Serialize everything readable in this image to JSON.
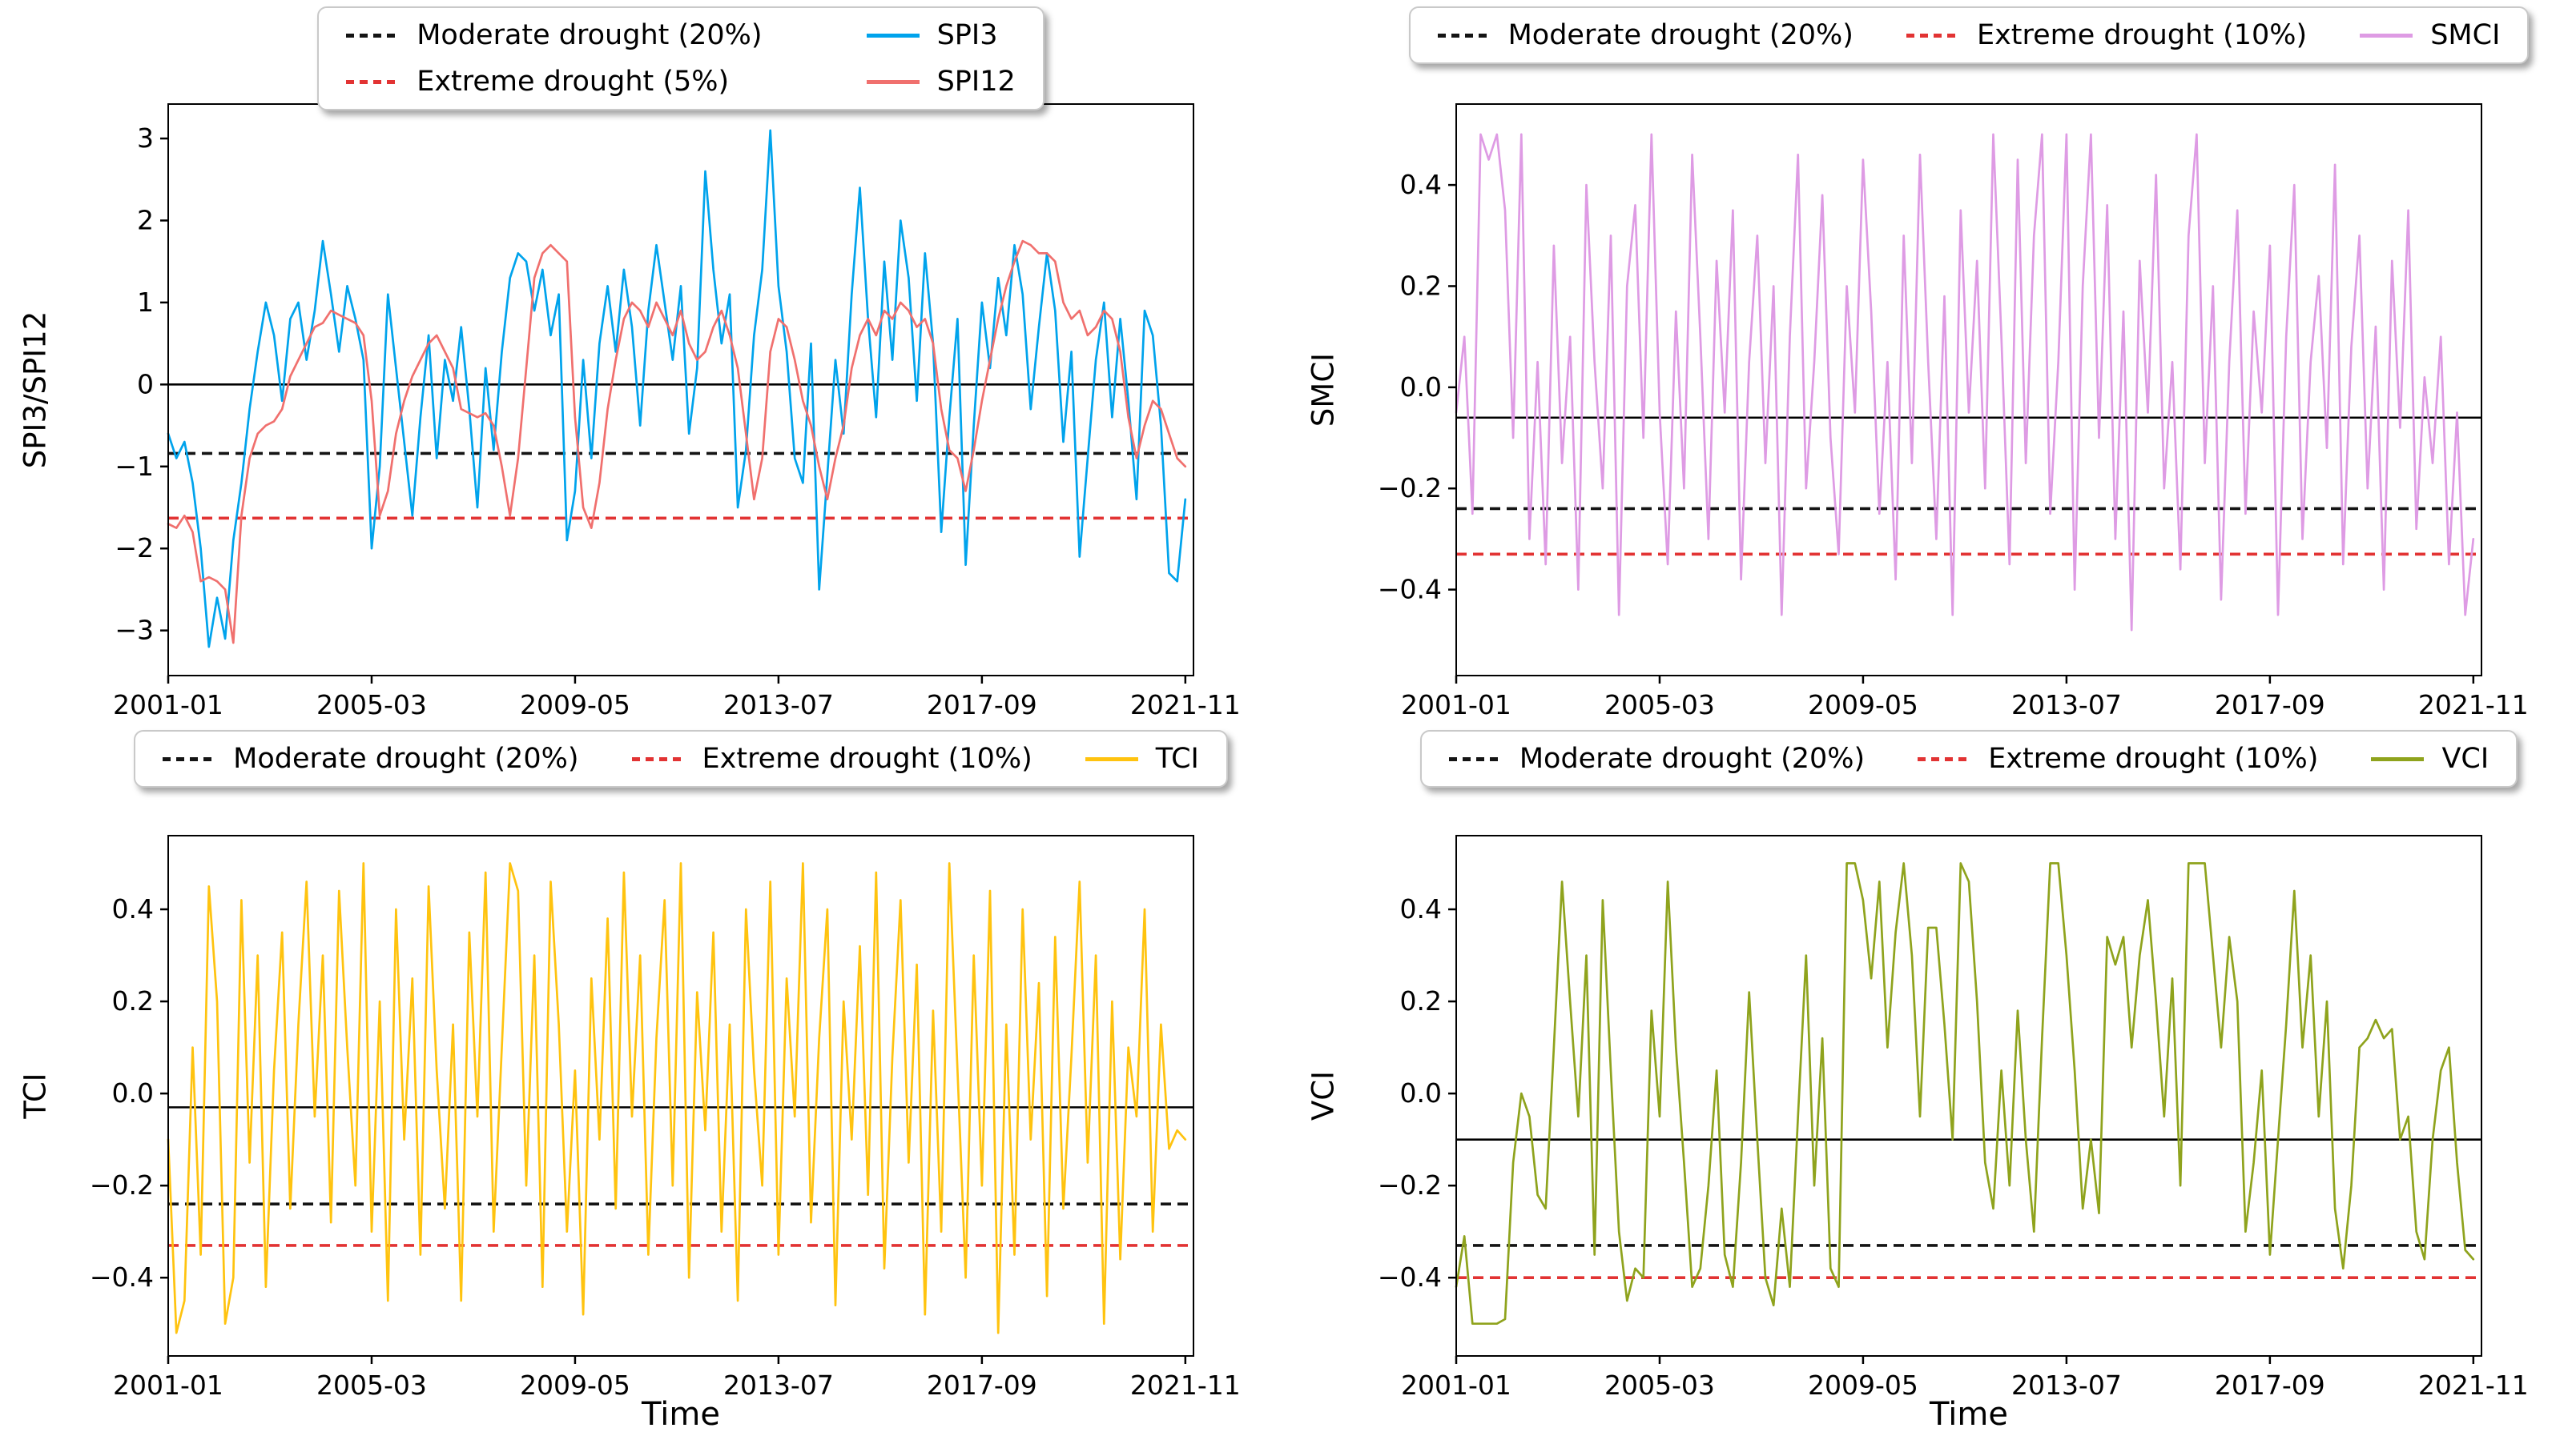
{
  "figure": {
    "background": "#ffffff",
    "time_axis_label": "Time"
  },
  "chart_data": [
    {
      "type": "line",
      "ylabel": "SPI3/SPI12",
      "xlabel": "",
      "x_tick_labels": [
        "2001-01",
        "2005-03",
        "2009-05",
        "2013-07",
        "2017-09",
        "2021-11"
      ],
      "x_tick_months": [
        0,
        50,
        100,
        150,
        200,
        250
      ],
      "x_total_months": 252,
      "x_step_months": 2,
      "ylim": [
        -3.55,
        3.42
      ],
      "yticks": [
        {
          "v": 3,
          "label": "3"
        },
        {
          "v": 2,
          "label": "2"
        },
        {
          "v": 1,
          "label": "1"
        },
        {
          "v": 0,
          "label": "0"
        },
        {
          "v": -1,
          "label": "−1"
        },
        {
          "v": -2,
          "label": "−2"
        },
        {
          "v": -3,
          "label": "−3"
        }
      ],
      "reference_lines": [
        {
          "name": "zero-line",
          "style": "solid",
          "color": "#000000",
          "value": 0
        },
        {
          "name": "Moderate drought (20%)",
          "style": "dashed",
          "color": "#141414",
          "value": -0.84
        },
        {
          "name": "Extreme drought (5%)",
          "style": "dashed",
          "color": "#e23333",
          "value": -1.63
        }
      ],
      "legend": [
        {
          "label": "Moderate drought (20%)",
          "style": "dashed",
          "color": "#141414"
        },
        {
          "label": "SPI3",
          "style": "solid",
          "color": "#00a3ec"
        },
        {
          "label": "Extreme drought (5%)",
          "style": "dashed",
          "color": "#e23333"
        },
        {
          "label": "SPI12",
          "style": "solid",
          "color": "#f0706e"
        }
      ],
      "series": [
        {
          "name": "SPI3",
          "color": "#00a3ec",
          "values": [
            -0.6,
            -0.9,
            -0.7,
            -1.2,
            -2.0,
            -3.2,
            -2.6,
            -3.1,
            -1.9,
            -1.2,
            -0.3,
            0.4,
            1.0,
            0.6,
            -0.2,
            0.8,
            1.0,
            0.3,
            0.9,
            1.75,
            1.1,
            0.4,
            1.2,
            0.8,
            0.3,
            -2.0,
            -1.0,
            1.1,
            0.2,
            -0.7,
            -1.6,
            -0.4,
            0.6,
            -0.9,
            0.3,
            -0.2,
            0.7,
            -0.3,
            -1.5,
            0.2,
            -0.8,
            0.4,
            1.3,
            1.6,
            1.5,
            0.9,
            1.4,
            0.6,
            1.1,
            -1.9,
            -1.3,
            0.3,
            -0.9,
            0.5,
            1.2,
            0.4,
            1.4,
            0.7,
            -0.5,
            0.9,
            1.7,
            1.0,
            0.3,
            1.2,
            -0.6,
            0.2,
            2.6,
            1.4,
            0.5,
            1.1,
            -1.5,
            -0.8,
            0.6,
            1.4,
            3.1,
            1.2,
            0.4,
            -0.9,
            -1.2,
            0.5,
            -2.5,
            -1.1,
            0.3,
            -0.6,
            1.1,
            2.4,
            0.8,
            -0.4,
            1.5,
            0.3,
            2.0,
            1.3,
            -0.2,
            1.6,
            0.5,
            -1.8,
            -0.4,
            0.8,
            -2.2,
            -0.5,
            1.0,
            0.2,
            1.3,
            0.6,
            1.7,
            1.1,
            -0.3,
            0.7,
            1.6,
            0.9,
            -0.7,
            0.4,
            -2.1,
            -0.9,
            0.3,
            1.0,
            -0.4,
            0.8,
            -0.2,
            -1.4,
            0.9,
            0.6,
            -0.5,
            -2.3,
            -2.4,
            -1.4
          ]
        },
        {
          "name": "SPI12",
          "color": "#f0706e",
          "values": [
            -1.7,
            -1.75,
            -1.6,
            -1.8,
            -2.4,
            -2.35,
            -2.4,
            -2.5,
            -3.15,
            -1.6,
            -0.9,
            -0.6,
            -0.5,
            -0.45,
            -0.3,
            0.1,
            0.3,
            0.5,
            0.7,
            0.75,
            0.9,
            0.85,
            0.8,
            0.75,
            0.6,
            -0.2,
            -1.6,
            -1.3,
            -0.6,
            -0.2,
            0.1,
            0.3,
            0.5,
            0.6,
            0.4,
            0.2,
            -0.3,
            -0.35,
            -0.4,
            -0.35,
            -0.5,
            -1.0,
            -1.6,
            -0.9,
            0.2,
            1.3,
            1.6,
            1.7,
            1.6,
            1.5,
            -0.4,
            -1.5,
            -1.75,
            -1.2,
            -0.3,
            0.3,
            0.8,
            1.0,
            0.9,
            0.7,
            1.0,
            0.8,
            0.6,
            0.9,
            0.5,
            0.3,
            0.4,
            0.7,
            0.9,
            0.6,
            0.2,
            -0.6,
            -1.4,
            -0.9,
            0.4,
            0.8,
            0.7,
            0.3,
            -0.2,
            -0.5,
            -1.0,
            -1.4,
            -0.9,
            -0.5,
            0.2,
            0.6,
            0.8,
            0.6,
            0.9,
            0.8,
            1.0,
            0.9,
            0.7,
            0.8,
            0.5,
            -0.3,
            -0.8,
            -0.9,
            -1.3,
            -0.8,
            -0.2,
            0.3,
            0.8,
            1.2,
            1.5,
            1.75,
            1.7,
            1.6,
            1.6,
            1.5,
            1.0,
            0.8,
            0.9,
            0.6,
            0.7,
            0.9,
            0.8,
            0.4,
            -0.4,
            -0.9,
            -0.5,
            -0.2,
            -0.3,
            -0.6,
            -0.9,
            -1.0
          ]
        }
      ]
    },
    {
      "type": "line",
      "ylabel": "SMCI",
      "xlabel": "",
      "x_tick_labels": [
        "2001-01",
        "2005-03",
        "2009-05",
        "2013-07",
        "2017-09",
        "2021-11"
      ],
      "x_tick_months": [
        0,
        50,
        100,
        150,
        200,
        250
      ],
      "x_total_months": 252,
      "x_step_months": 2,
      "ylim": [
        -0.57,
        0.56
      ],
      "yticks": [
        {
          "v": 0.4,
          "label": "0.4"
        },
        {
          "v": 0.2,
          "label": "0.2"
        },
        {
          "v": 0.0,
          "label": "0.0"
        },
        {
          "v": -0.2,
          "label": "−0.2"
        },
        {
          "v": -0.4,
          "label": "−0.4"
        }
      ],
      "reference_lines": [
        {
          "name": "mean-line",
          "style": "solid",
          "color": "#000000",
          "value": -0.06
        },
        {
          "name": "Moderate drought (20%)",
          "style": "dashed",
          "color": "#141414",
          "value": -0.24
        },
        {
          "name": "Extreme drought (10%)",
          "style": "dashed",
          "color": "#e23333",
          "value": -0.33
        }
      ],
      "legend": [
        {
          "label": "Moderate drought (20%)",
          "style": "dashed",
          "color": "#141414"
        },
        {
          "label": "Extreme drought (10%)",
          "style": "dashed",
          "color": "#e23333"
        },
        {
          "label": "SMCI",
          "style": "solid",
          "color": "#de9be4"
        }
      ],
      "series": [
        {
          "name": "SMCI",
          "color": "#de9be4",
          "values": [
            -0.05,
            0.1,
            -0.25,
            0.5,
            0.45,
            0.5,
            0.35,
            -0.1,
            0.5,
            -0.3,
            0.05,
            -0.35,
            0.28,
            -0.15,
            0.1,
            -0.4,
            0.4,
            0.05,
            -0.2,
            0.3,
            -0.45,
            0.2,
            0.36,
            -0.1,
            0.5,
            -0.05,
            -0.35,
            0.15,
            -0.2,
            0.46,
            0.1,
            -0.3,
            0.25,
            -0.05,
            0.35,
            -0.38,
            0.05,
            0.3,
            -0.15,
            0.2,
            -0.45,
            0.1,
            0.46,
            -0.2,
            0.05,
            0.38,
            -0.1,
            -0.33,
            0.2,
            -0.05,
            0.45,
            0.15,
            -0.25,
            0.05,
            -0.38,
            0.3,
            -0.15,
            0.46,
            0.05,
            -0.3,
            0.18,
            -0.45,
            0.35,
            -0.05,
            0.25,
            -0.2,
            0.5,
            0.1,
            -0.35,
            0.45,
            -0.15,
            0.3,
            0.5,
            -0.25,
            0.05,
            0.5,
            -0.4,
            0.2,
            0.5,
            -0.1,
            0.36,
            -0.3,
            0.15,
            -0.48,
            0.25,
            -0.05,
            0.42,
            -0.2,
            0.05,
            -0.36,
            0.3,
            0.5,
            -0.15,
            0.2,
            -0.42,
            0.05,
            0.35,
            -0.25,
            0.15,
            -0.05,
            0.28,
            -0.45,
            0.1,
            0.4,
            -0.3,
            0.05,
            0.22,
            -0.12,
            0.44,
            -0.35,
            0.08,
            0.3,
            -0.2,
            0.12,
            -0.4,
            0.25,
            -0.08,
            0.35,
            -0.28,
            0.02,
            -0.15,
            0.1,
            -0.35,
            -0.05,
            -0.45,
            -0.3
          ]
        }
      ]
    },
    {
      "type": "line",
      "ylabel": "TCI",
      "xlabel": "Time",
      "x_tick_labels": [
        "2001-01",
        "2005-03",
        "2009-05",
        "2013-07",
        "2017-09",
        "2021-11"
      ],
      "x_tick_months": [
        0,
        50,
        100,
        150,
        200,
        250
      ],
      "x_total_months": 252,
      "x_step_months": 2,
      "ylim": [
        -0.57,
        0.56
      ],
      "yticks": [
        {
          "v": 0.4,
          "label": "0.4"
        },
        {
          "v": 0.2,
          "label": "0.2"
        },
        {
          "v": 0.0,
          "label": "0.0"
        },
        {
          "v": -0.2,
          "label": "−0.2"
        },
        {
          "v": -0.4,
          "label": "−0.4"
        }
      ],
      "reference_lines": [
        {
          "name": "mean-line",
          "style": "solid",
          "color": "#000000",
          "value": -0.03
        },
        {
          "name": "Moderate drought (20%)",
          "style": "dashed",
          "color": "#141414",
          "value": -0.24
        },
        {
          "name": "Extreme drought (10%)",
          "style": "dashed",
          "color": "#e23333",
          "value": -0.33
        }
      ],
      "legend": [
        {
          "label": "Moderate drought (20%)",
          "style": "dashed",
          "color": "#141414"
        },
        {
          "label": "Extreme drought (10%)",
          "style": "dashed",
          "color": "#e23333"
        },
        {
          "label": "TCI",
          "style": "solid",
          "color": "#ffc30f"
        }
      ],
      "series": [
        {
          "name": "TCI",
          "color": "#ffc30f",
          "values": [
            -0.1,
            -0.52,
            -0.45,
            0.1,
            -0.35,
            0.45,
            0.2,
            -0.5,
            -0.4,
            0.42,
            -0.15,
            0.3,
            -0.42,
            0.05,
            0.35,
            -0.25,
            0.15,
            0.46,
            -0.05,
            0.3,
            -0.28,
            0.44,
            0.1,
            -0.2,
            0.5,
            -0.3,
            0.2,
            -0.45,
            0.4,
            -0.1,
            0.25,
            -0.35,
            0.45,
            0.05,
            -0.25,
            0.15,
            -0.45,
            0.35,
            -0.05,
            0.48,
            -0.3,
            0.1,
            0.5,
            0.44,
            -0.2,
            0.3,
            -0.42,
            0.46,
            0.15,
            -0.3,
            0.05,
            -0.48,
            0.25,
            -0.1,
            0.38,
            -0.25,
            0.48,
            -0.05,
            0.3,
            -0.35,
            0.12,
            0.42,
            -0.2,
            0.5,
            -0.4,
            0.22,
            -0.08,
            0.35,
            -0.3,
            0.15,
            -0.45,
            0.4,
            0.05,
            -0.2,
            0.46,
            -0.35,
            0.25,
            -0.05,
            0.5,
            -0.28,
            0.12,
            0.4,
            -0.46,
            0.2,
            -0.1,
            0.32,
            -0.22,
            0.48,
            -0.38,
            0.08,
            0.42,
            -0.15,
            0.28,
            -0.48,
            0.18,
            -0.3,
            0.5,
            0.05,
            -0.4,
            0.3,
            -0.2,
            0.44,
            -0.52,
            0.15,
            -0.35,
            0.4,
            -0.1,
            0.24,
            -0.44,
            0.34,
            -0.25,
            0.08,
            0.46,
            -0.15,
            0.3,
            -0.5,
            0.2,
            -0.36,
            0.1,
            -0.05,
            0.4,
            -0.3,
            0.15,
            -0.12,
            -0.08,
            -0.1
          ]
        }
      ]
    },
    {
      "type": "line",
      "ylabel": "VCI",
      "xlabel": "Time",
      "x_tick_labels": [
        "2001-01",
        "2005-03",
        "2009-05",
        "2013-07",
        "2017-09",
        "2021-11"
      ],
      "x_tick_months": [
        0,
        50,
        100,
        150,
        200,
        250
      ],
      "x_total_months": 252,
      "x_step_months": 2,
      "ylim": [
        -0.57,
        0.56
      ],
      "yticks": [
        {
          "v": 0.4,
          "label": "0.4"
        },
        {
          "v": 0.2,
          "label": "0.2"
        },
        {
          "v": 0.0,
          "label": "0.0"
        },
        {
          "v": -0.2,
          "label": "−0.2"
        },
        {
          "v": -0.4,
          "label": "−0.4"
        }
      ],
      "reference_lines": [
        {
          "name": "mean-line",
          "style": "solid",
          "color": "#000000",
          "value": -0.1
        },
        {
          "name": "Moderate drought (20%)",
          "style": "dashed",
          "color": "#141414",
          "value": -0.33
        },
        {
          "name": "Extreme drought (10%)",
          "style": "dashed",
          "color": "#e23333",
          "value": -0.4
        }
      ],
      "legend": [
        {
          "label": "Moderate drought (20%)",
          "style": "dashed",
          "color": "#141414"
        },
        {
          "label": "Extreme drought (10%)",
          "style": "dashed",
          "color": "#e23333"
        },
        {
          "label": "VCI",
          "style": "solid",
          "color": "#8fa31d"
        }
      ],
      "series": [
        {
          "name": "VCI",
          "color": "#8fa31d",
          "values": [
            -0.42,
            -0.31,
            -0.5,
            -0.5,
            -0.5,
            -0.5,
            -0.49,
            -0.15,
            0.0,
            -0.05,
            -0.22,
            -0.25,
            0.1,
            0.46,
            0.2,
            -0.05,
            0.3,
            -0.35,
            0.42,
            0.05,
            -0.3,
            -0.45,
            -0.38,
            -0.4,
            0.18,
            -0.05,
            0.46,
            0.1,
            -0.15,
            -0.42,
            -0.38,
            -0.2,
            0.05,
            -0.35,
            -0.42,
            -0.15,
            0.22,
            -0.1,
            -0.4,
            -0.46,
            -0.25,
            -0.42,
            -0.05,
            0.3,
            -0.2,
            0.12,
            -0.38,
            -0.42,
            0.5,
            0.5,
            0.42,
            0.25,
            0.46,
            0.1,
            0.35,
            0.5,
            0.3,
            -0.05,
            0.36,
            0.36,
            0.15,
            -0.1,
            0.5,
            0.46,
            0.2,
            -0.15,
            -0.25,
            0.05,
            -0.2,
            0.18,
            -0.1,
            -0.3,
            0.12,
            0.5,
            0.5,
            0.3,
            0.05,
            -0.25,
            -0.1,
            -0.26,
            0.34,
            0.28,
            0.34,
            0.1,
            0.3,
            0.42,
            0.2,
            -0.05,
            0.25,
            -0.2,
            0.5,
            0.5,
            0.5,
            0.3,
            0.1,
            0.34,
            0.2,
            -0.3,
            -0.15,
            0.05,
            -0.35,
            -0.1,
            0.15,
            0.44,
            0.1,
            0.3,
            -0.05,
            0.2,
            -0.25,
            -0.38,
            -0.2,
            0.1,
            0.12,
            0.16,
            0.12,
            0.14,
            -0.1,
            -0.05,
            -0.3,
            -0.36,
            -0.1,
            0.05,
            0.1,
            -0.15,
            -0.34,
            -0.36
          ]
        }
      ]
    }
  ]
}
